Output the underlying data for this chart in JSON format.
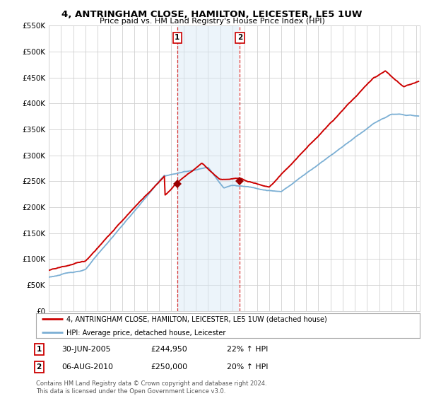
{
  "title": "4, ANTRINGHAM CLOSE, HAMILTON, LEICESTER, LE5 1UW",
  "subtitle": "Price paid vs. HM Land Registry's House Price Index (HPI)",
  "ylim": [
    0,
    550000
  ],
  "xlim_start": 1995,
  "xlim_end": 2025.3,
  "sale1_year": 2005.5,
  "sale1_price": 244950,
  "sale2_year": 2010.6,
  "sale2_price": 250000,
  "legend_line1": "4, ANTRINGHAM CLOSE, HAMILTON, LEICESTER, LE5 1UW (detached house)",
  "legend_line2": "HPI: Average price, detached house, Leicester",
  "ann1_label": "1",
  "ann1_date": "30-JUN-2005",
  "ann1_price": "£244,950",
  "ann1_hpi": "22% ↑ HPI",
  "ann2_label": "2",
  "ann2_date": "06-AUG-2010",
  "ann2_price": "£250,000",
  "ann2_hpi": "20% ↑ HPI",
  "footer": "Contains HM Land Registry data © Crown copyright and database right 2024.\nThis data is licensed under the Open Government Licence v3.0.",
  "red_color": "#cc0000",
  "blue_color": "#7bafd4",
  "shade_color": "#d6e8f5",
  "grid_color": "#d0d0d0",
  "bg_color": "#ffffff",
  "marker_color": "#990000"
}
